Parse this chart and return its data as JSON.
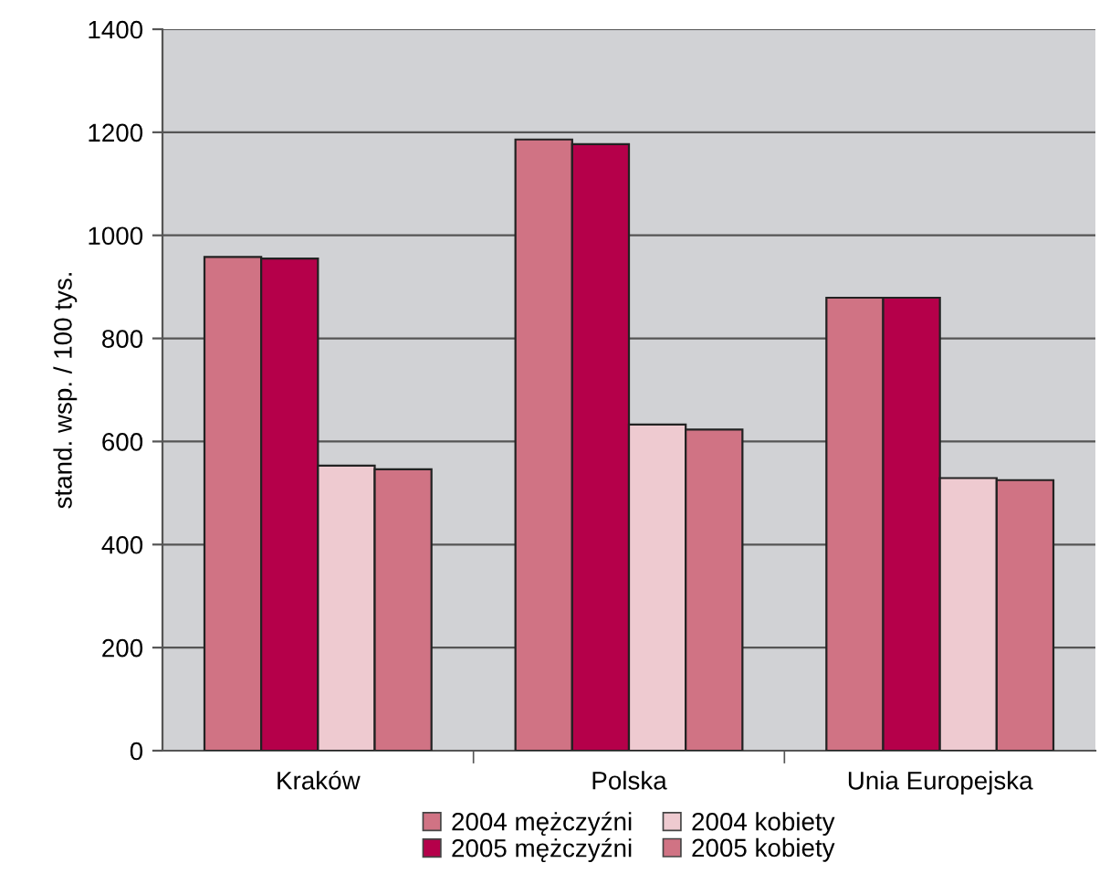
{
  "chart_data": {
    "type": "bar",
    "ylabel": "stand. wsp. / 100 tys.",
    "categories": [
      "Kraków",
      "Polska",
      "Unia Europejska"
    ],
    "series": [
      {
        "name": "2004 mężczyźni",
        "color": "#d07384",
        "values": [
          958,
          1186,
          879
        ]
      },
      {
        "name": "2005 mężczyźni",
        "color": "#b5004a",
        "values": [
          955,
          1177,
          879
        ]
      },
      {
        "name": "2004 kobiety",
        "color": "#eecad0",
        "values": [
          553,
          633,
          529
        ]
      },
      {
        "name": "2005 kobiety",
        "color": "#d07384",
        "values": [
          546,
          623,
          525
        ]
      }
    ],
    "ylim": [
      0,
      1400
    ],
    "yticks": [
      0,
      200,
      400,
      600,
      800,
      1000,
      1200,
      1400
    ],
    "grid": "y",
    "legend": "bottom"
  }
}
